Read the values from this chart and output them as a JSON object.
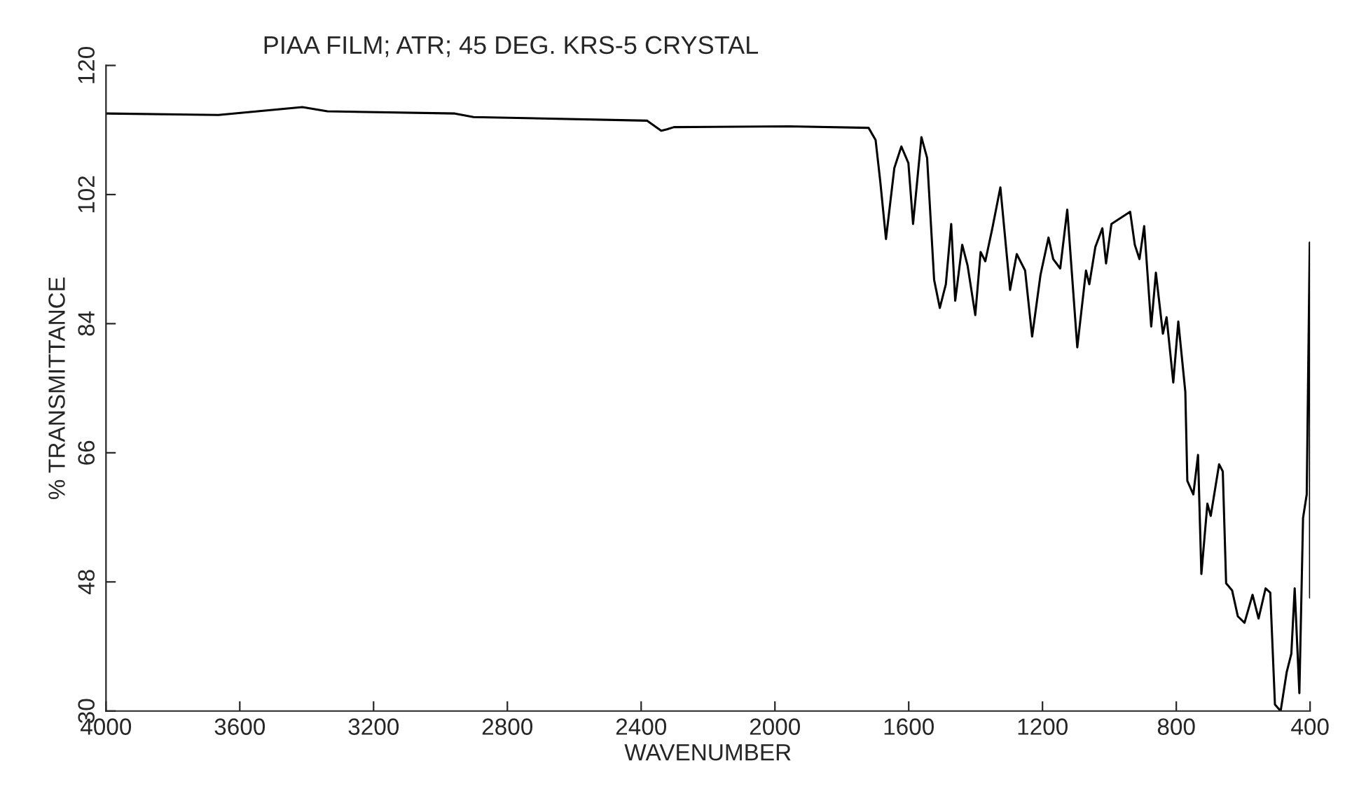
{
  "chart_data": {
    "type": "line",
    "title": "PIAA FILM; ATR; 45 DEG. KRS-5 CRYSTAL",
    "xlabel": "WAVENUMBER",
    "ylabel": "% TRANSMITTANCE",
    "xlim": [
      4000,
      400
    ],
    "xticks": [
      4000,
      3600,
      3200,
      2800,
      2400,
      2000,
      1600,
      1200,
      800,
      400
    ],
    "ylim": [
      30,
      120
    ],
    "yticks": [
      30,
      48,
      66,
      84,
      102,
      120
    ],
    "grid": false,
    "legend": false,
    "marker": "none",
    "line_style": "solid",
    "series": [
      {
        "color": "#000000",
        "x": [
          4000,
          3664,
          3413,
          3338,
          2957,
          2901,
          2382,
          2340,
          2323,
          2302,
          1959,
          1720,
          1699,
          1685,
          1668,
          1643,
          1622,
          1601,
          1587,
          1562,
          1545,
          1524,
          1507,
          1489,
          1473,
          1461,
          1440,
          1424,
          1401,
          1385,
          1371,
          1350,
          1326,
          1297,
          1277,
          1252,
          1231,
          1206,
          1182,
          1168,
          1147,
          1126,
          1096,
          1070,
          1060,
          1042,
          1021,
          1010,
          994,
          938,
          924,
          910,
          896,
          875,
          861,
          840,
          829,
          809,
          794,
          773,
          767,
          749,
          735,
          725,
          707,
          697,
          672,
          661,
          651,
          633,
          616,
          596,
          572,
          554,
          533,
          519,
          505,
          488,
          470,
          456,
          446,
          432,
          421,
          410,
          401,
          400
        ],
        "values": [
          113.3,
          113.1,
          114.2,
          113.6,
          113.3,
          112.8,
          112.3,
          110.9,
          111.1,
          111.4,
          111.5,
          111.3,
          109.6,
          103.8,
          95.8,
          105.7,
          108.7,
          106.4,
          97.9,
          110.0,
          107.1,
          90.1,
          86.2,
          89.5,
          97.9,
          87.2,
          95.0,
          92.1,
          85.2,
          94.0,
          92.7,
          97.3,
          103.0,
          88.7,
          93.7,
          91.4,
          82.2,
          90.8,
          96.0,
          93.0,
          91.7,
          99.9,
          80.7,
          91.4,
          89.5,
          94.7,
          97.3,
          92.4,
          97.9,
          99.6,
          95.0,
          93.0,
          97.6,
          83.6,
          91.1,
          82.6,
          84.9,
          75.8,
          84.3,
          74.5,
          62.1,
          60.2,
          65.7,
          49.1,
          58.9,
          57.2,
          64.4,
          63.4,
          47.8,
          46.8,
          43.2,
          42.3,
          46.2,
          42.9,
          47.1,
          46.5,
          30.9,
          30.0,
          35.4,
          38.0,
          47.1,
          32.5,
          56.9,
          60.2,
          95.3,
          45.8
        ]
      }
    ]
  }
}
